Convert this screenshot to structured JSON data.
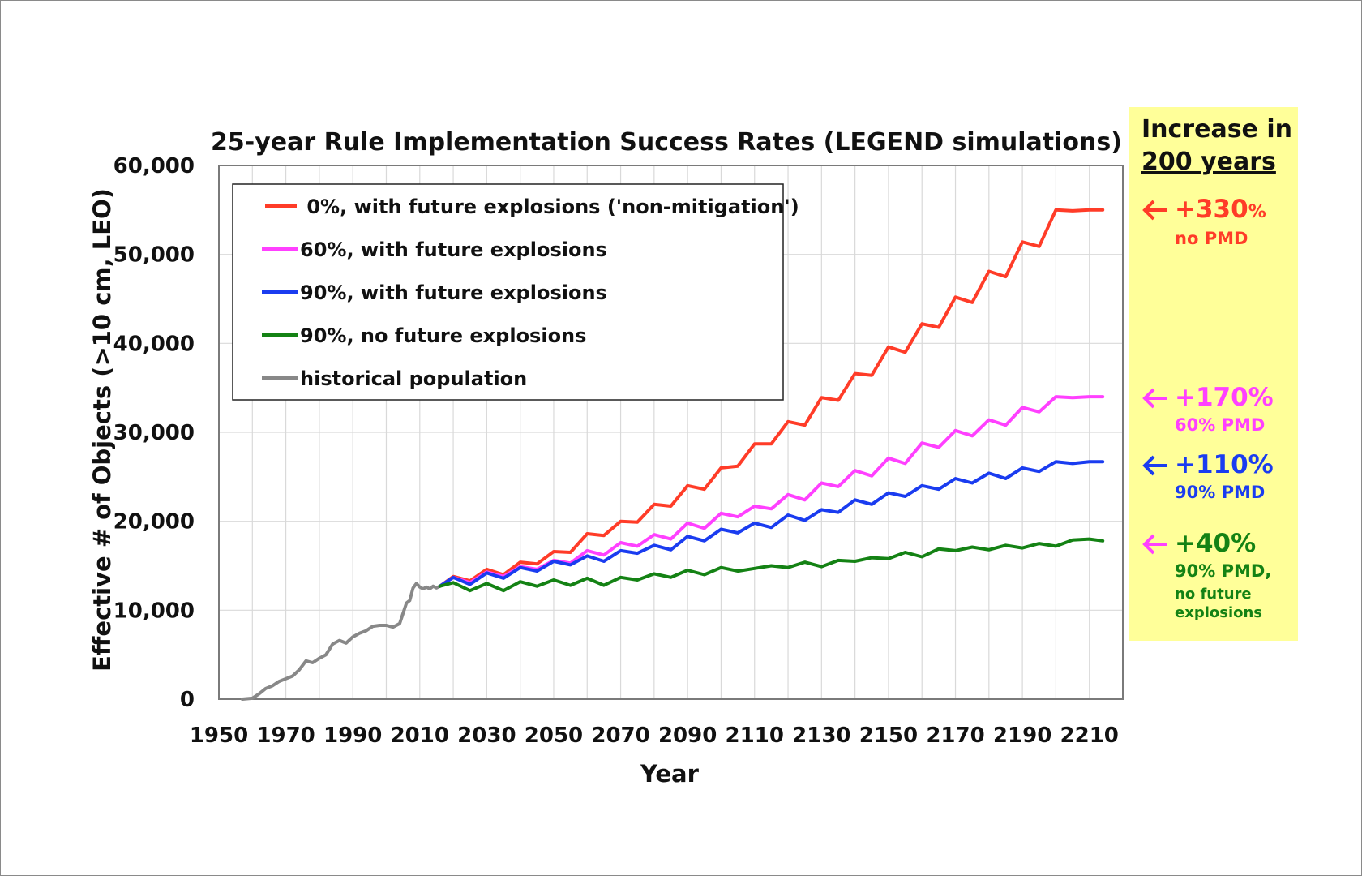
{
  "chart_data": {
    "type": "line",
    "title": "25-year Rule Implementation Success Rates (LEGEND simulations)",
    "xlabel": "Year",
    "ylabel": "Effective # of Objects (>10 cm, LEO)",
    "xlim": [
      1950,
      2220
    ],
    "ylim": [
      0,
      60000
    ],
    "x_ticks": [
      "1950",
      "1970",
      "1990",
      "2010",
      "2030",
      "2050",
      "2070",
      "2090",
      "2110",
      "2130",
      "2150",
      "2170",
      "2190",
      "2210"
    ],
    "y_ticks": [
      "0",
      "10,000",
      "20,000",
      "30,000",
      "40,000",
      "50,000",
      "60,000"
    ],
    "grid": true,
    "legend_position": "top-left",
    "series": [
      {
        "name": " 0%, with future explosions ('non-mitigation')",
        "color": "#ff3c28",
        "x": [
          2016,
          2020,
          2025,
          2030,
          2035,
          2040,
          2045,
          2050,
          2055,
          2060,
          2065,
          2070,
          2075,
          2080,
          2085,
          2090,
          2095,
          2100,
          2105,
          2110,
          2115,
          2120,
          2125,
          2130,
          2135,
          2140,
          2145,
          2150,
          2155,
          2160,
          2165,
          2170,
          2175,
          2180,
          2185,
          2190,
          2195,
          2200,
          2205,
          2210,
          2214
        ],
        "y": [
          12700,
          13800,
          13300,
          14600,
          14000,
          15400,
          15200,
          16600,
          16500,
          18600,
          18400,
          20000,
          19900,
          21900,
          21700,
          24000,
          23600,
          26000,
          26200,
          28700,
          28700,
          31200,
          30800,
          33900,
          33600,
          36600,
          36400,
          39600,
          39000,
          42200,
          41800,
          45200,
          44600,
          48100,
          47500,
          51400,
          50900,
          55000,
          54900,
          55000,
          55000
        ]
      },
      {
        "name": "60%, with future explosions",
        "color": "#ff40ff",
        "x": [
          2016,
          2020,
          2025,
          2030,
          2035,
          2040,
          2045,
          2050,
          2055,
          2060,
          2065,
          2070,
          2075,
          2080,
          2085,
          2090,
          2095,
          2100,
          2105,
          2110,
          2115,
          2120,
          2125,
          2130,
          2135,
          2140,
          2145,
          2150,
          2155,
          2160,
          2165,
          2170,
          2175,
          2180,
          2185,
          2190,
          2195,
          2200,
          2205,
          2210,
          2214
        ],
        "y": [
          12700,
          13700,
          13100,
          14300,
          13800,
          14900,
          14600,
          15600,
          15300,
          16700,
          16200,
          17600,
          17200,
          18500,
          18000,
          19800,
          19200,
          20900,
          20500,
          21700,
          21400,
          23000,
          22400,
          24300,
          23900,
          25700,
          25100,
          27100,
          26500,
          28800,
          28300,
          30200,
          29600,
          31400,
          30800,
          32800,
          32300,
          34000,
          33900,
          34000,
          34000
        ]
      },
      {
        "name": "90%, with future explosions",
        "color": "#1a3cf0",
        "x": [
          2016,
          2020,
          2025,
          2030,
          2035,
          2040,
          2045,
          2050,
          2055,
          2060,
          2065,
          2070,
          2075,
          2080,
          2085,
          2090,
          2095,
          2100,
          2105,
          2110,
          2115,
          2120,
          2125,
          2130,
          2135,
          2140,
          2145,
          2150,
          2155,
          2160,
          2165,
          2170,
          2175,
          2180,
          2185,
          2190,
          2195,
          2200,
          2205,
          2210,
          2214
        ],
        "y": [
          12700,
          13700,
          12900,
          14200,
          13600,
          14800,
          14400,
          15500,
          15100,
          16100,
          15500,
          16700,
          16400,
          17300,
          16800,
          18300,
          17800,
          19100,
          18700,
          19800,
          19300,
          20700,
          20100,
          21300,
          21000,
          22400,
          21900,
          23200,
          22800,
          24000,
          23600,
          24800,
          24300,
          25400,
          24800,
          26000,
          25600,
          26700,
          26500,
          26700,
          26700
        ]
      },
      {
        "name": "90%, no future explosions",
        "color": "#148214",
        "x": [
          2016,
          2020,
          2025,
          2030,
          2035,
          2040,
          2045,
          2050,
          2055,
          2060,
          2065,
          2070,
          2075,
          2080,
          2085,
          2090,
          2095,
          2100,
          2105,
          2110,
          2115,
          2120,
          2125,
          2130,
          2135,
          2140,
          2145,
          2150,
          2155,
          2160,
          2165,
          2170,
          2175,
          2180,
          2185,
          2190,
          2195,
          2200,
          2205,
          2210,
          2214
        ],
        "y": [
          12700,
          13100,
          12200,
          13000,
          12200,
          13200,
          12700,
          13400,
          12800,
          13600,
          12800,
          13700,
          13400,
          14100,
          13700,
          14500,
          14000,
          14800,
          14400,
          14700,
          15000,
          14800,
          15400,
          14900,
          15600,
          15500,
          15900,
          15800,
          16500,
          16000,
          16900,
          16700,
          17100,
          16800,
          17300,
          17000,
          17500,
          17200,
          17900,
          18000,
          17800
        ]
      },
      {
        "name": "historical population",
        "color": "#888888",
        "x": [
          1957,
          1960,
          1962,
          1964,
          1966,
          1968,
          1970,
          1972,
          1974,
          1976,
          1978,
          1980,
          1982,
          1984,
          1986,
          1988,
          1990,
          1992,
          1994,
          1996,
          1998,
          2000,
          2002,
          2004,
          2006,
          2007,
          2008,
          2009,
          2010,
          2011,
          2012,
          2013,
          2014,
          2015,
          2016
        ],
        "y": [
          0,
          100,
          600,
          1200,
          1500,
          2000,
          2300,
          2600,
          3300,
          4300,
          4100,
          4600,
          5000,
          6200,
          6600,
          6300,
          7000,
          7400,
          7700,
          8200,
          8300,
          8300,
          8100,
          8500,
          10800,
          11100,
          12500,
          13000,
          12600,
          12400,
          12600,
          12400,
          12700,
          12500,
          12700
        ]
      }
    ]
  },
  "side_panel": {
    "heading_line1": "Increase in",
    "heading_line2": "200 years",
    "annotations": [
      {
        "value": "+330",
        "pct": "%",
        "sub1": "no PMD",
        "sub2": "",
        "sub3": "",
        "color": "#ff3c28"
      },
      {
        "value": "+170%",
        "pct": "",
        "sub1": "60% PMD",
        "sub2": "",
        "sub3": "",
        "color": "#ff40ff"
      },
      {
        "value": "+110%",
        "pct": "",
        "sub1": "90% PMD",
        "sub2": "",
        "sub3": "",
        "color": "#1a3cf0"
      },
      {
        "value": "+40%",
        "pct": "",
        "sub1": "90% PMD,",
        "sub2": "no future",
        "sub3": "explosions",
        "color": "#148214"
      }
    ]
  }
}
